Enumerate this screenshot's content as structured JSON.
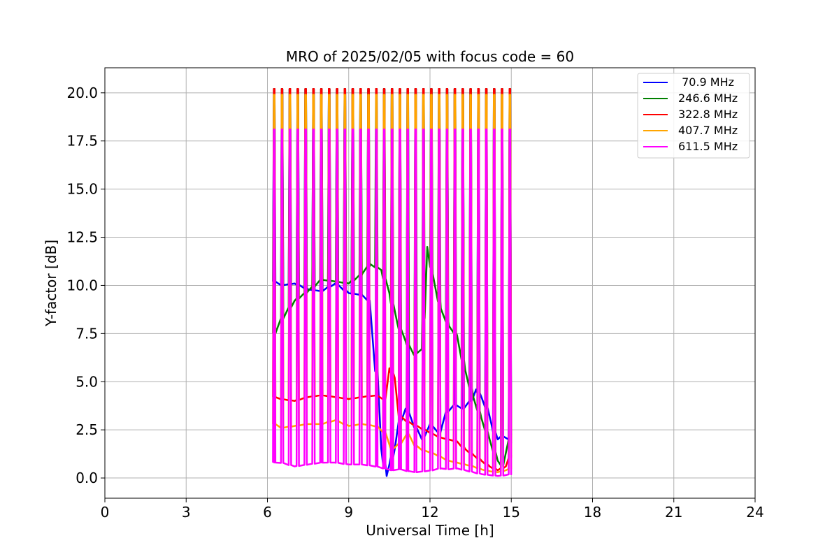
{
  "chart_data": {
    "type": "line",
    "title": "MRO of 2025/02/05 with focus code = 60",
    "xlabel": "Universal Time [h]",
    "ylabel": "Y-factor [dB]",
    "xlim": [
      0,
      24
    ],
    "ylim": [
      -1.05,
      21.3
    ],
    "xticks": [
      0,
      3,
      6,
      9,
      12,
      15,
      18,
      21,
      24
    ],
    "xtick_labels": [
      "0",
      "3",
      "6",
      "9",
      "12",
      "15",
      "18",
      "21",
      "24"
    ],
    "yticks": [
      0,
      2.5,
      5,
      7.5,
      10,
      12.5,
      15,
      17.5,
      20
    ],
    "ytick_labels": [
      "0.0",
      "2.5",
      "5.0",
      "7.5",
      "10.0",
      "12.5",
      "15.0",
      "17.5",
      "20.0"
    ],
    "grid": true,
    "legend_position": "top-right",
    "spike_times": [
      6.25,
      6.54,
      6.83,
      7.12,
      7.41,
      7.7,
      7.99,
      8.28,
      8.57,
      8.86,
      9.15,
      9.44,
      9.73,
      10.02,
      10.31,
      10.6,
      10.89,
      11.18,
      11.47,
      11.76,
      12.05,
      12.34,
      12.63,
      12.92,
      13.21,
      13.5,
      13.79,
      14.08,
      14.37,
      14.66,
      14.95
    ],
    "series": [
      {
        "name": " 70.9 MHz",
        "color": "#0000ff",
        "x": [
          6.25,
          6.5,
          7.0,
          7.5,
          8.0,
          8.5,
          9.0,
          9.5,
          9.75,
          10.0,
          10.2,
          10.4,
          10.5,
          10.7,
          10.9,
          11.1,
          11.3,
          11.5,
          11.7,
          12.0,
          12.3,
          12.6,
          12.9,
          13.2,
          13.5,
          13.7,
          13.9,
          14.1,
          14.3,
          14.5,
          14.7,
          14.9,
          15.0
        ],
        "y": [
          10.2,
          10.0,
          10.1,
          9.8,
          9.7,
          10.1,
          9.6,
          9.5,
          9.2,
          6.0,
          1.5,
          0.1,
          0.7,
          1.5,
          3.0,
          3.6,
          3.1,
          2.5,
          2.0,
          2.8,
          2.2,
          3.4,
          3.8,
          3.6,
          4.0,
          4.6,
          4.2,
          3.6,
          2.6,
          2.0,
          2.2,
          2.0,
          1.8
        ],
        "spike_peak": 20.2
      },
      {
        "name": "246.6 MHz",
        "color": "#008000",
        "x": [
          6.25,
          6.5,
          7.0,
          7.5,
          8.0,
          8.5,
          9.0,
          9.5,
          9.8,
          10.2,
          10.5,
          10.8,
          11.1,
          11.4,
          11.7,
          11.9,
          12.1,
          12.4,
          12.7,
          13.0,
          13.3,
          13.6,
          13.9,
          14.2,
          14.5,
          14.7,
          15.0
        ],
        "y": [
          7.5,
          8.2,
          9.2,
          9.7,
          10.3,
          10.2,
          10.1,
          10.6,
          11.1,
          10.8,
          9.6,
          8.0,
          7.1,
          6.4,
          6.7,
          12.0,
          10.6,
          8.8,
          7.9,
          7.4,
          5.6,
          4.2,
          3.1,
          2.0,
          0.9,
          0.6,
          2.3
        ],
        "spike_peak": 20.2
      },
      {
        "name": "322.8 MHz",
        "color": "#ff0000",
        "x": [
          6.25,
          6.5,
          7.0,
          7.5,
          8.0,
          8.5,
          9.0,
          9.5,
          10.0,
          10.3,
          10.5,
          10.7,
          10.9,
          11.2,
          11.5,
          11.8,
          12.1,
          12.4,
          12.7,
          13.0,
          13.3,
          13.6,
          13.9,
          14.2,
          14.5,
          14.8,
          15.0
        ],
        "y": [
          4.2,
          4.1,
          4.0,
          4.2,
          4.3,
          4.2,
          4.1,
          4.2,
          4.3,
          4.0,
          5.7,
          5.2,
          3.1,
          2.9,
          2.7,
          2.5,
          2.3,
          2.1,
          2.0,
          1.9,
          1.5,
          1.2,
          0.9,
          0.6,
          0.4,
          0.6,
          1.2
        ],
        "spike_peak": 20.2
      },
      {
        "name": "407.7 MHz",
        "color": "#ffa500",
        "x": [
          6.25,
          6.5,
          7.0,
          7.5,
          8.0,
          8.5,
          9.0,
          9.5,
          10.0,
          10.3,
          10.6,
          10.9,
          11.2,
          11.5,
          11.8,
          12.1,
          12.4,
          12.7,
          13.0,
          13.3,
          13.6,
          13.9,
          14.2,
          14.5,
          14.8,
          15.0
        ],
        "y": [
          2.8,
          2.6,
          2.7,
          2.8,
          2.8,
          3.0,
          2.7,
          2.8,
          2.7,
          2.4,
          1.5,
          1.8,
          2.3,
          1.6,
          1.4,
          1.3,
          1.1,
          0.9,
          0.8,
          0.7,
          0.6,
          0.45,
          0.35,
          0.3,
          0.4,
          0.5
        ],
        "spike_peak": 19.9
      },
      {
        "name": "611.5 MHz",
        "color": "#ff00ff",
        "x": [
          6.25,
          6.5,
          7.0,
          7.5,
          8.0,
          8.5,
          9.0,
          9.5,
          10.0,
          10.3,
          10.6,
          10.9,
          11.2,
          11.5,
          11.8,
          12.1,
          12.4,
          12.7,
          13.0,
          13.3,
          13.6,
          13.9,
          14.2,
          14.5,
          14.8,
          15.0
        ],
        "y": [
          0.8,
          0.8,
          0.6,
          0.7,
          0.8,
          0.8,
          0.7,
          0.7,
          0.6,
          0.5,
          0.4,
          0.45,
          0.35,
          0.3,
          0.35,
          0.4,
          0.5,
          0.45,
          0.5,
          0.4,
          0.3,
          0.2,
          0.15,
          0.1,
          0.15,
          0.2
        ],
        "spike_peak": 18.1
      }
    ]
  }
}
